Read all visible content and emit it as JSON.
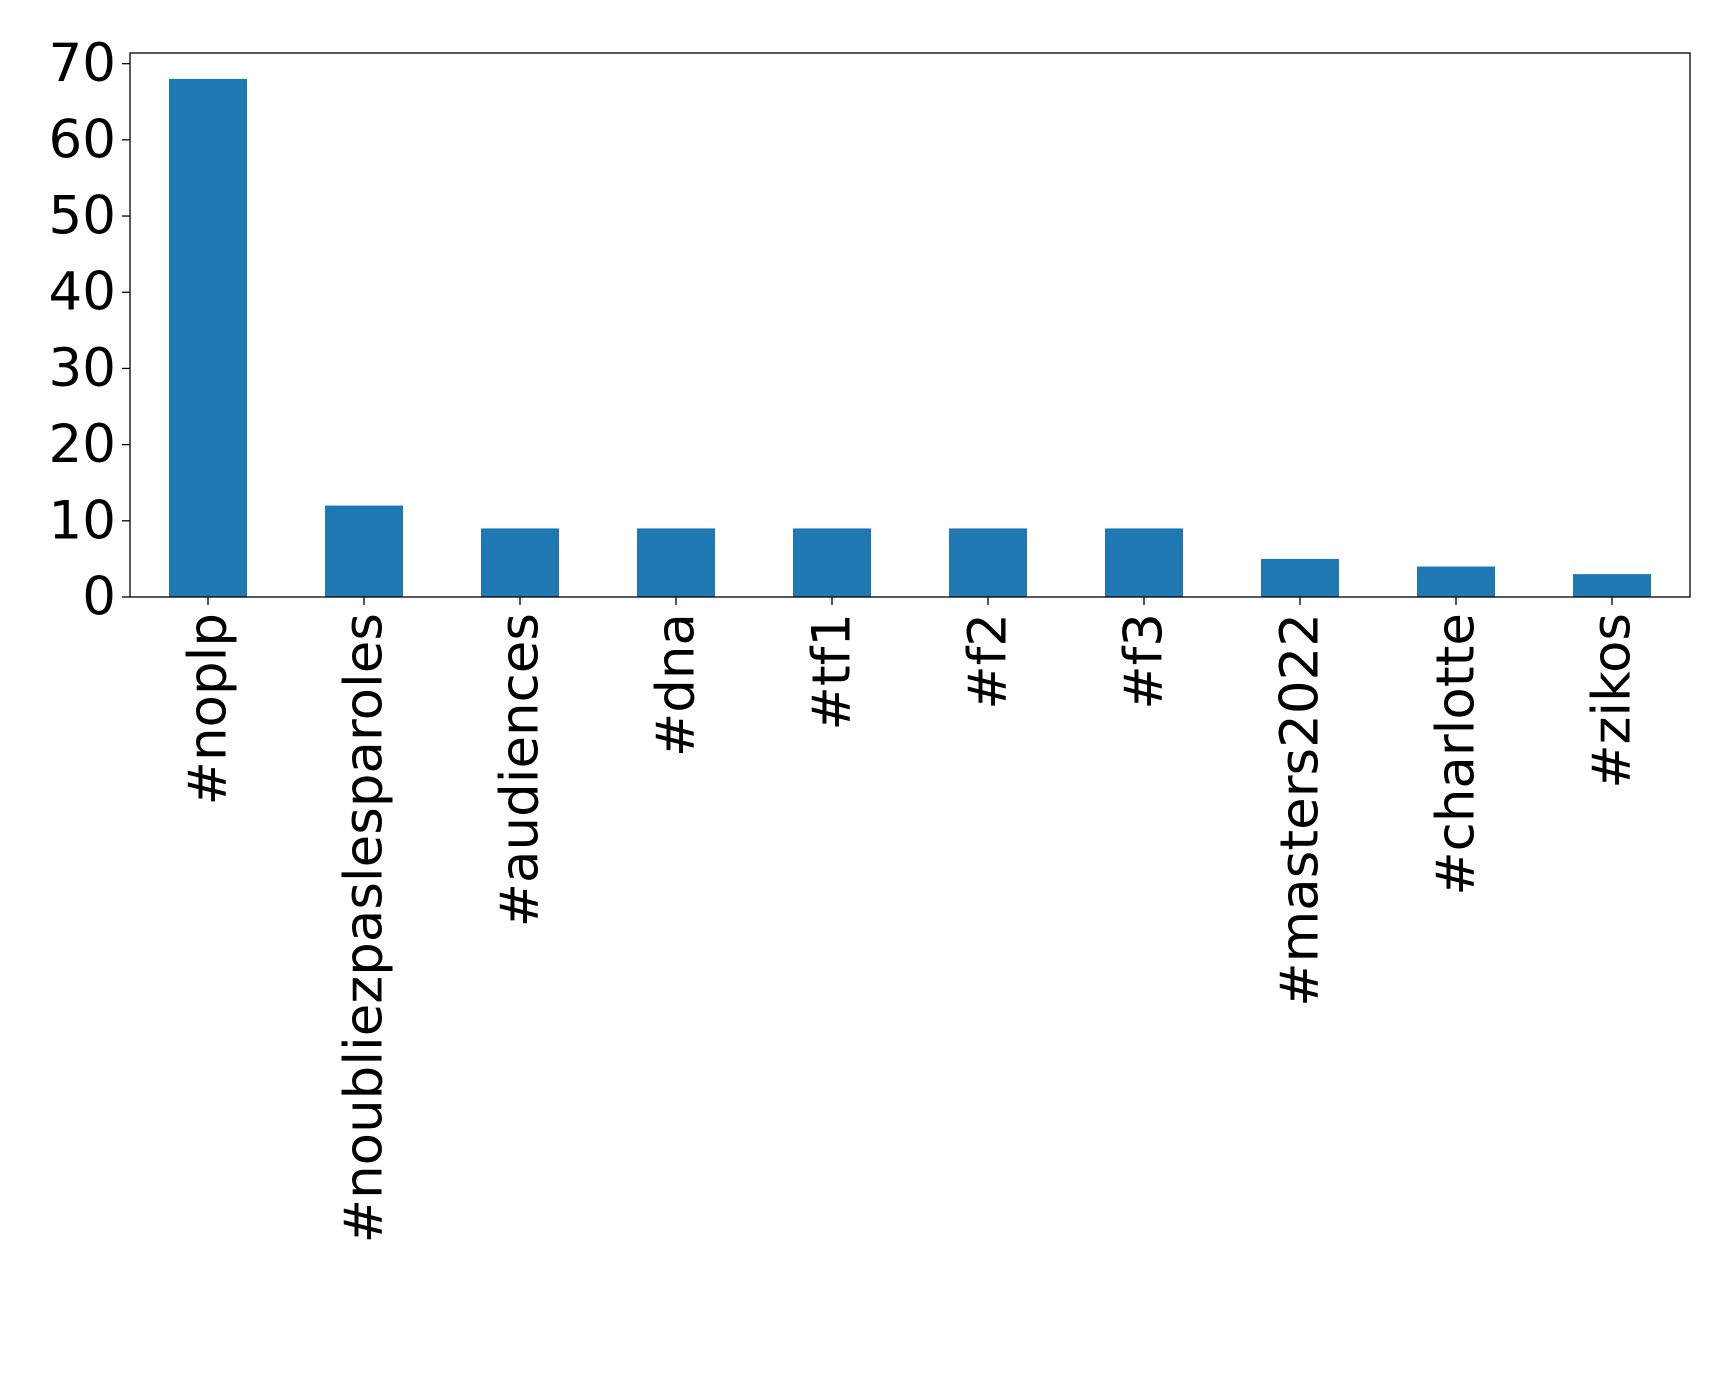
{
  "chart_data": {
    "type": "bar",
    "title": "",
    "xlabel": "",
    "ylabel": "",
    "categories": [
      "#noplp",
      "#noubliezpaslesparoles",
      "#audiences",
      "#dna",
      "#tf1",
      "#f2",
      "#f3",
      "#masters2022",
      "#charlotte",
      "#zikos"
    ],
    "values": [
      68,
      12,
      9,
      9,
      9,
      9,
      9,
      5,
      4,
      3
    ],
    "ylim": [
      0,
      71.4
    ],
    "yticks": [
      0,
      10,
      20,
      30,
      40,
      50,
      60,
      70
    ],
    "ytick_labels": [
      "0",
      "10",
      "20",
      "30",
      "40",
      "50",
      "60",
      "70"
    ],
    "grid": false,
    "legend": "none",
    "bar_color": "#1f77b4"
  }
}
